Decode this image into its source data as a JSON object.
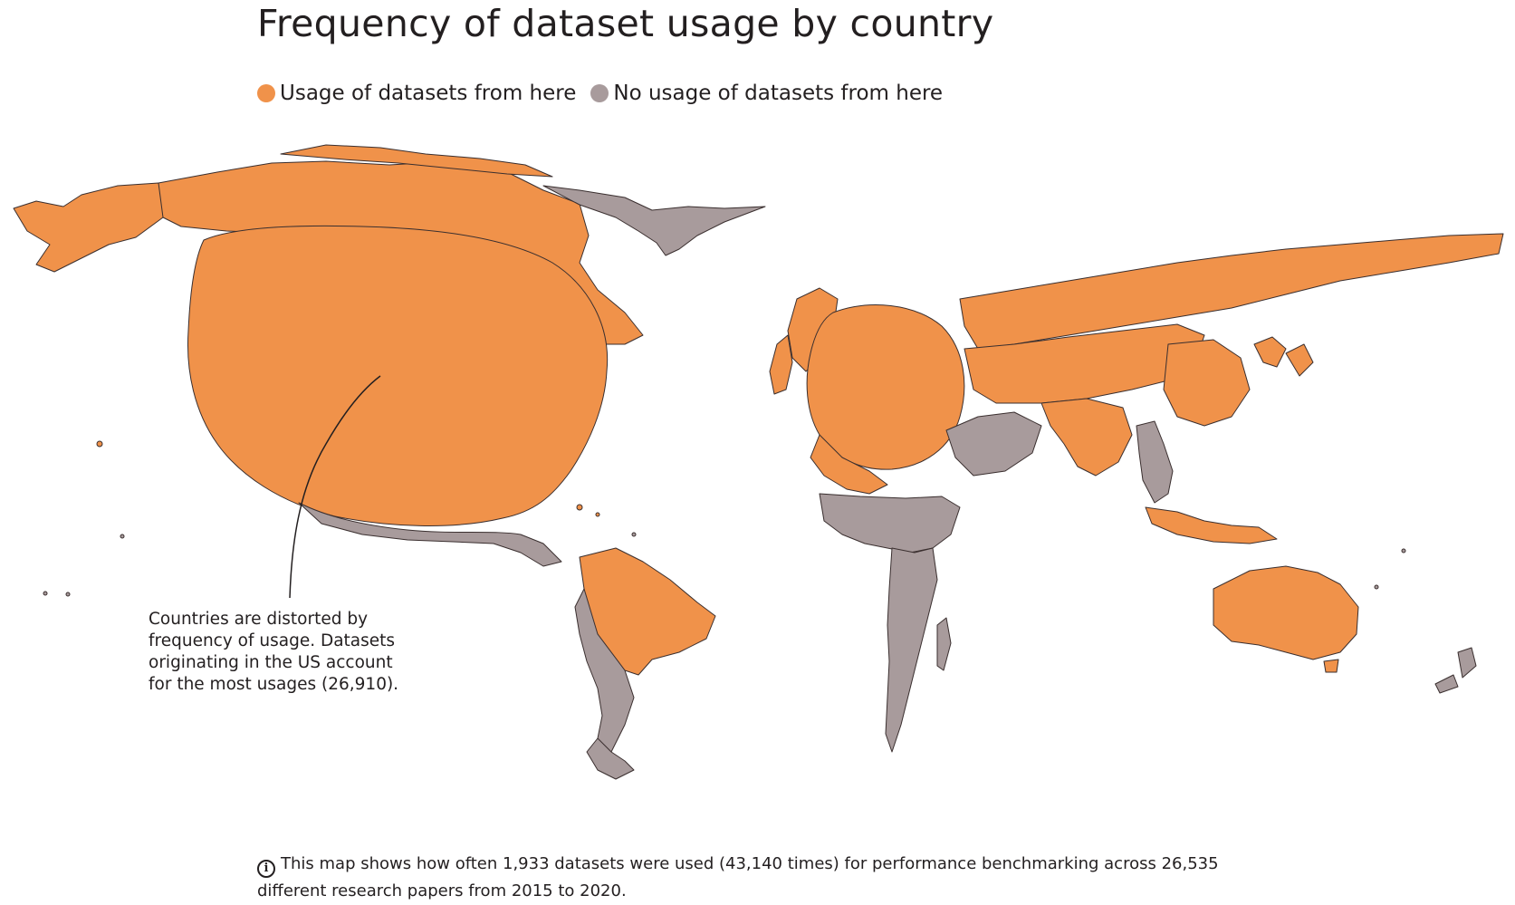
{
  "title": "Frequency of dataset usage by country",
  "legend": [
    {
      "label": "Usage of datasets from here",
      "color": "#f0924a"
    },
    {
      "label": "No usage of datasets from here",
      "color": "#a89b9c"
    }
  ],
  "annotation": {
    "lines": [
      "Countries are distorted by",
      "frequency of usage. Datasets",
      "originating in the US account",
      "for the most usages (26,910)."
    ]
  },
  "footnote": {
    "icon": "info-icon",
    "lines": [
      "This map shows how often 1,933 datasets were used (43,140 times) for performance benchmarking across 26,535",
      "different research papers from 2015 to 2020."
    ]
  },
  "colors": {
    "usage": "#f0924a",
    "no_usage": "#a89b9c",
    "outline": "#3a2f2f"
  }
}
